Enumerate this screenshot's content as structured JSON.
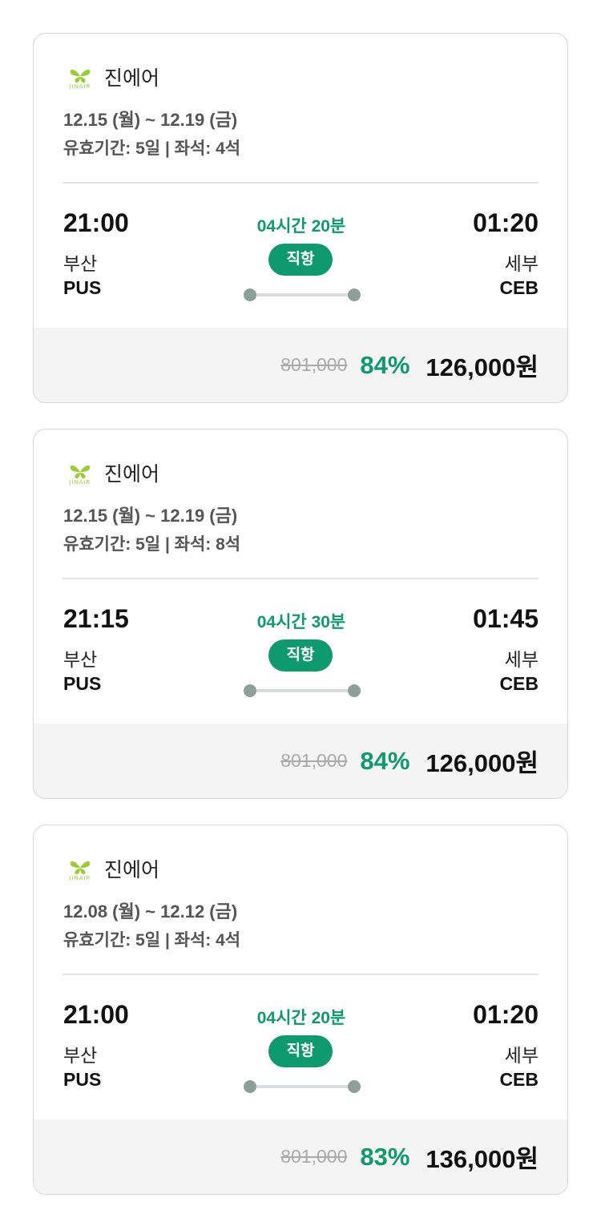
{
  "colors": {
    "accent": "#0f9a6e",
    "logo": "#9acd32"
  },
  "flights": [
    {
      "airline": "진에어",
      "logo_text": "JINAIR",
      "dates": "12.15 (월) ~ 12.19 (금)",
      "meta": "유효기간: 5일 | 좌석: 4석",
      "dep_time": "21:00",
      "dep_city": "부산",
      "dep_code": "PUS",
      "duration": "04시간 20분",
      "type": "직항",
      "arr_time": "01:20",
      "arr_city": "세부",
      "arr_code": "CEB",
      "original_price": "801,000",
      "discount": "84%",
      "price": "126,000원"
    },
    {
      "airline": "진에어",
      "logo_text": "JINAIR",
      "dates": "12.15 (월) ~ 12.19 (금)",
      "meta": "유효기간: 5일 | 좌석: 8석",
      "dep_time": "21:15",
      "dep_city": "부산",
      "dep_code": "PUS",
      "duration": "04시간 30분",
      "type": "직항",
      "arr_time": "01:45",
      "arr_city": "세부",
      "arr_code": "CEB",
      "original_price": "801,000",
      "discount": "84%",
      "price": "126,000원"
    },
    {
      "airline": "진에어",
      "logo_text": "JINAIR",
      "dates": "12.08 (월) ~ 12.12 (금)",
      "meta": "유효기간: 5일 | 좌석: 4석",
      "dep_time": "21:00",
      "dep_city": "부산",
      "dep_code": "PUS",
      "duration": "04시간 20분",
      "type": "직항",
      "arr_time": "01:20",
      "arr_city": "세부",
      "arr_code": "CEB",
      "original_price": "801,000",
      "discount": "83%",
      "price": "136,000원"
    }
  ]
}
